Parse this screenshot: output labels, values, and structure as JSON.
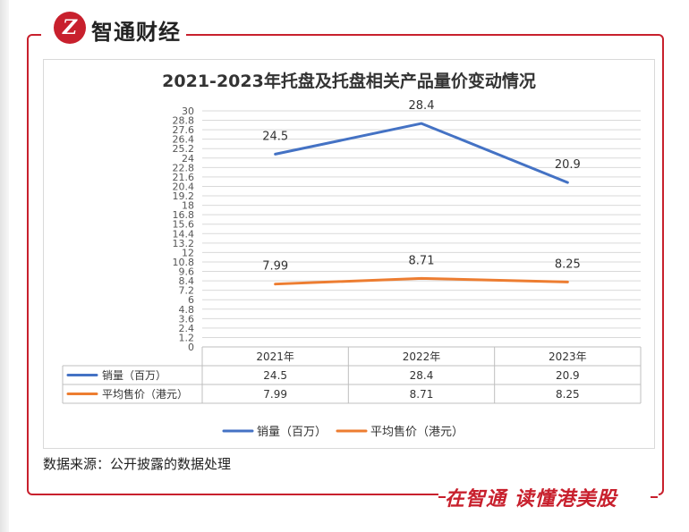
{
  "brand": {
    "name": "智通财经",
    "logo_text": "Z"
  },
  "slogan": "在智通 读懂港美股",
  "source_note": "数据来源：公开披露的数据处理",
  "colors": {
    "accent": "#c8202d",
    "series_volume": "#4472c4",
    "series_price": "#ed7d31"
  },
  "chart_data": {
    "type": "line",
    "title": "2021-2023年托盘及托盘相关产品量价变动情况",
    "categories": [
      "2021年",
      "2022年",
      "2023年"
    ],
    "series": [
      {
        "name": "销量（百万）",
        "values": [
          24.5,
          28.4,
          20.9
        ],
        "labels": [
          "24.5",
          "28.4",
          "20.9"
        ]
      },
      {
        "name": "平均售价（港元）",
        "values": [
          7.99,
          8.71,
          8.25
        ],
        "labels": [
          "7.99",
          "8.71",
          "8.25"
        ]
      }
    ],
    "ylim": [
      0,
      30
    ],
    "yticks": [
      "0",
      "1.2",
      "2.4",
      "3.6",
      "4.8",
      "6",
      "7.2",
      "8.4",
      "9.6",
      "10.8",
      "12",
      "13.2",
      "14.4",
      "15.6",
      "16.8",
      "18",
      "19.2",
      "20.4",
      "21.6",
      "22.8",
      "24",
      "25.2",
      "26.4",
      "27.6",
      "28.8",
      "30"
    ],
    "grid": true,
    "data_table": true,
    "legend": "bottom"
  }
}
